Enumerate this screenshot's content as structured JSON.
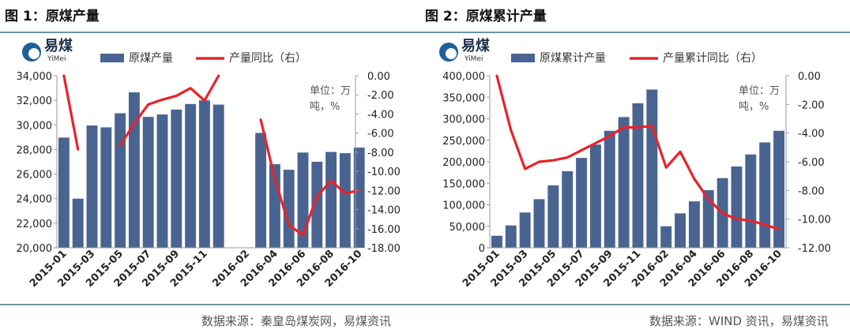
{
  "figures": [
    {
      "title": "图 1：原煤产量",
      "source": "数据来源：秦皇岛煤炭网，易煤资讯"
    },
    {
      "title": "图 2：原煤累计产量",
      "source": "数据来源：WIND 资讯，易煤资讯"
    }
  ],
  "logo": {
    "name": "易煤",
    "sub": "YiMei"
  },
  "colors": {
    "bar": "#4a6491",
    "line": "#e8232a",
    "rule": "#6d93a6"
  },
  "chart_data": [
    {
      "type": "bar",
      "categories": [
        "2015-01",
        "2015-02",
        "2015-03",
        "2015-04",
        "2015-05",
        "2015-06",
        "2015-07",
        "2015-08",
        "2015-09",
        "2015-10",
        "2015-11",
        "2015-12",
        "2016-01",
        "2016-02",
        "2016-03",
        "2016-04",
        "2016-05",
        "2016-06",
        "2016-07",
        "2016-08",
        "2016-09",
        "2016-10"
      ],
      "x_tick_labels": [
        "2015-01",
        "2015-03",
        "2015-05",
        "2015-07",
        "2015-09",
        "2015-11",
        "2016-02",
        "2016-04",
        "2016-06",
        "2016-08",
        "2016-10"
      ],
      "unit_note": [
        "单位：万",
        "吨，%"
      ],
      "series": [
        {
          "name": "原煤产量",
          "type": "bar",
          "axis": "left",
          "values": [
            28970,
            24000,
            29950,
            29800,
            30950,
            32650,
            30650,
            30850,
            31250,
            31700,
            32000,
            31650,
            null,
            null,
            29350,
            26800,
            26350,
            27750,
            27000,
            27800,
            27700,
            28150
          ]
        },
        {
          "name": "产量同比（右）",
          "type": "line",
          "axis": "right",
          "values": [
            0.0,
            -7.7,
            null,
            null,
            -7.3,
            -5.0,
            -3.0,
            -2.5,
            -2.1,
            -1.3,
            -2.6,
            0.0,
            null,
            null,
            -4.6,
            -10.8,
            -15.6,
            -16.7,
            -12.6,
            -11.0,
            -12.3,
            -12.0
          ]
        }
      ],
      "ylim": [
        20000,
        34000
      ],
      "yticks": [
        20000,
        22000,
        24000,
        26000,
        28000,
        30000,
        32000,
        34000
      ],
      "y2lim": [
        -18,
        0
      ],
      "y2ticks": [
        0,
        -2,
        -4,
        -6,
        -8,
        -10,
        -12,
        -14,
        -16,
        -18
      ],
      "grid": false,
      "legend": "top"
    },
    {
      "type": "bar",
      "categories": [
        "2015-01",
        "2015-02",
        "2015-03",
        "2015-04",
        "2015-05",
        "2015-06",
        "2015-07",
        "2015-08",
        "2015-09",
        "2015-10",
        "2015-11",
        "2015-12",
        "2016-02",
        "2016-03",
        "2016-04",
        "2016-05",
        "2016-06",
        "2016-07",
        "2016-08",
        "2016-09",
        "2016-10"
      ],
      "x_tick_labels": [
        "2015-01",
        "2015-03",
        "2015-05",
        "2015-07",
        "2015-09",
        "2015-11",
        "2016-02",
        "2016-04",
        "2016-06",
        "2016-08",
        "2016-10"
      ],
      "unit_note": [
        "单位：万",
        "吨，%"
      ],
      "series": [
        {
          "name": "原煤累计产量",
          "type": "bar",
          "axis": "left",
          "values": [
            28000,
            52000,
            82000,
            113000,
            145000,
            178000,
            209000,
            240000,
            272000,
            304000,
            336000,
            368000,
            50000,
            80000,
            108000,
            134000,
            162000,
            189000,
            217000,
            245000,
            272000
          ]
        },
        {
          "name": "产量累计同比（右）",
          "type": "line",
          "axis": "right",
          "values": [
            0.0,
            -3.8,
            -6.5,
            -6.0,
            -5.9,
            -5.7,
            -5.2,
            -4.7,
            -4.2,
            -3.6,
            -3.6,
            -3.5,
            -6.4,
            -5.3,
            -7.2,
            -8.6,
            -9.6,
            -10.0,
            -10.1,
            -10.4,
            -10.7
          ]
        }
      ],
      "ylim": [
        0,
        400000
      ],
      "yticks": [
        0,
        50000,
        100000,
        150000,
        200000,
        250000,
        300000,
        350000,
        400000
      ],
      "y2lim": [
        -12,
        0
      ],
      "y2ticks": [
        0,
        -2,
        -4,
        -6,
        -8,
        -10,
        -12
      ],
      "grid": false,
      "legend": "top"
    }
  ]
}
